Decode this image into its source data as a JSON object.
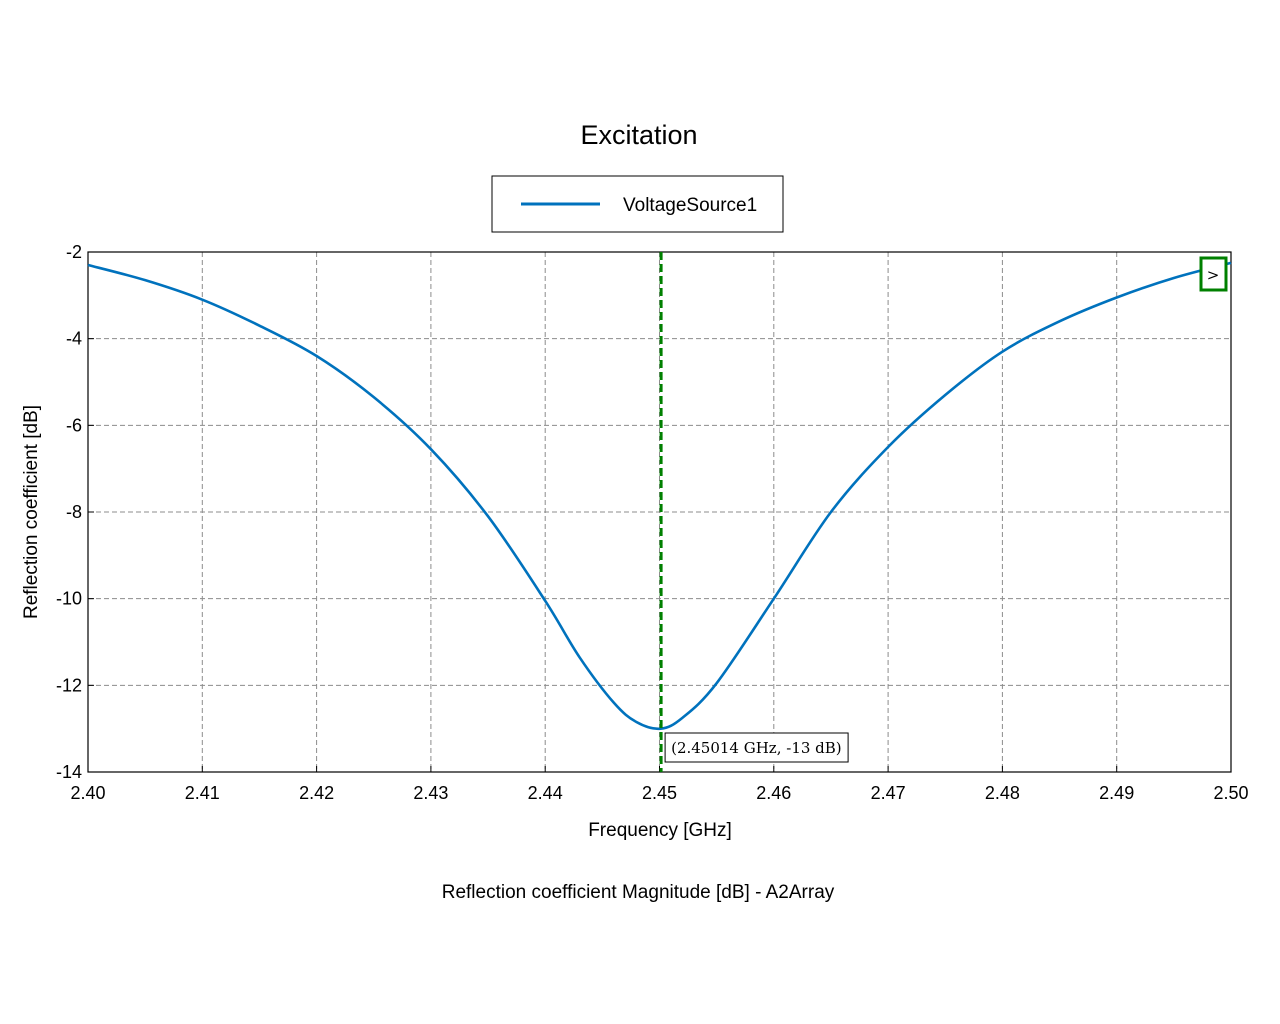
{
  "chart_data": {
    "type": "line",
    "title": "Excitation",
    "xlabel": "Frequency [GHz]",
    "ylabel": "Reflection coefficient [dB]",
    "subtitle": "Reflection coefficient Magnitude [dB] - A2Array",
    "xlim": [
      2.4,
      2.5
    ],
    "ylim": [
      -14,
      -2
    ],
    "x_ticks": [
      "2.40",
      "2.41",
      "2.42",
      "2.43",
      "2.44",
      "2.45",
      "2.46",
      "2.47",
      "2.48",
      "2.49",
      "2.50"
    ],
    "y_ticks": [
      "-2",
      "-4",
      "-6",
      "-8",
      "-10",
      "-12",
      "-14"
    ],
    "grid": true,
    "legend_position": "top-center",
    "series": [
      {
        "name": "VoltageSource1",
        "color": "#0072BD",
        "x": [
          2.4,
          2.405,
          2.41,
          2.415,
          2.42,
          2.425,
          2.43,
          2.435,
          2.44,
          2.443,
          2.446,
          2.448,
          2.4501,
          2.452,
          2.455,
          2.46,
          2.465,
          2.47,
          2.475,
          2.48,
          2.485,
          2.49,
          2.495,
          2.5
        ],
        "y": [
          -2.3,
          -2.65,
          -3.1,
          -3.7,
          -4.4,
          -5.35,
          -6.55,
          -8.1,
          -10.05,
          -11.35,
          -12.4,
          -12.85,
          -13.0,
          -12.75,
          -11.95,
          -10.0,
          -8.0,
          -6.5,
          -5.3,
          -4.3,
          -3.6,
          -3.05,
          -2.6,
          -2.25
        ]
      }
    ],
    "marker": {
      "x": 2.45014,
      "y": -13,
      "label": "(2.45014 GHz, -13 dB)",
      "color": "#008000"
    },
    "right_marker_label": ">"
  }
}
